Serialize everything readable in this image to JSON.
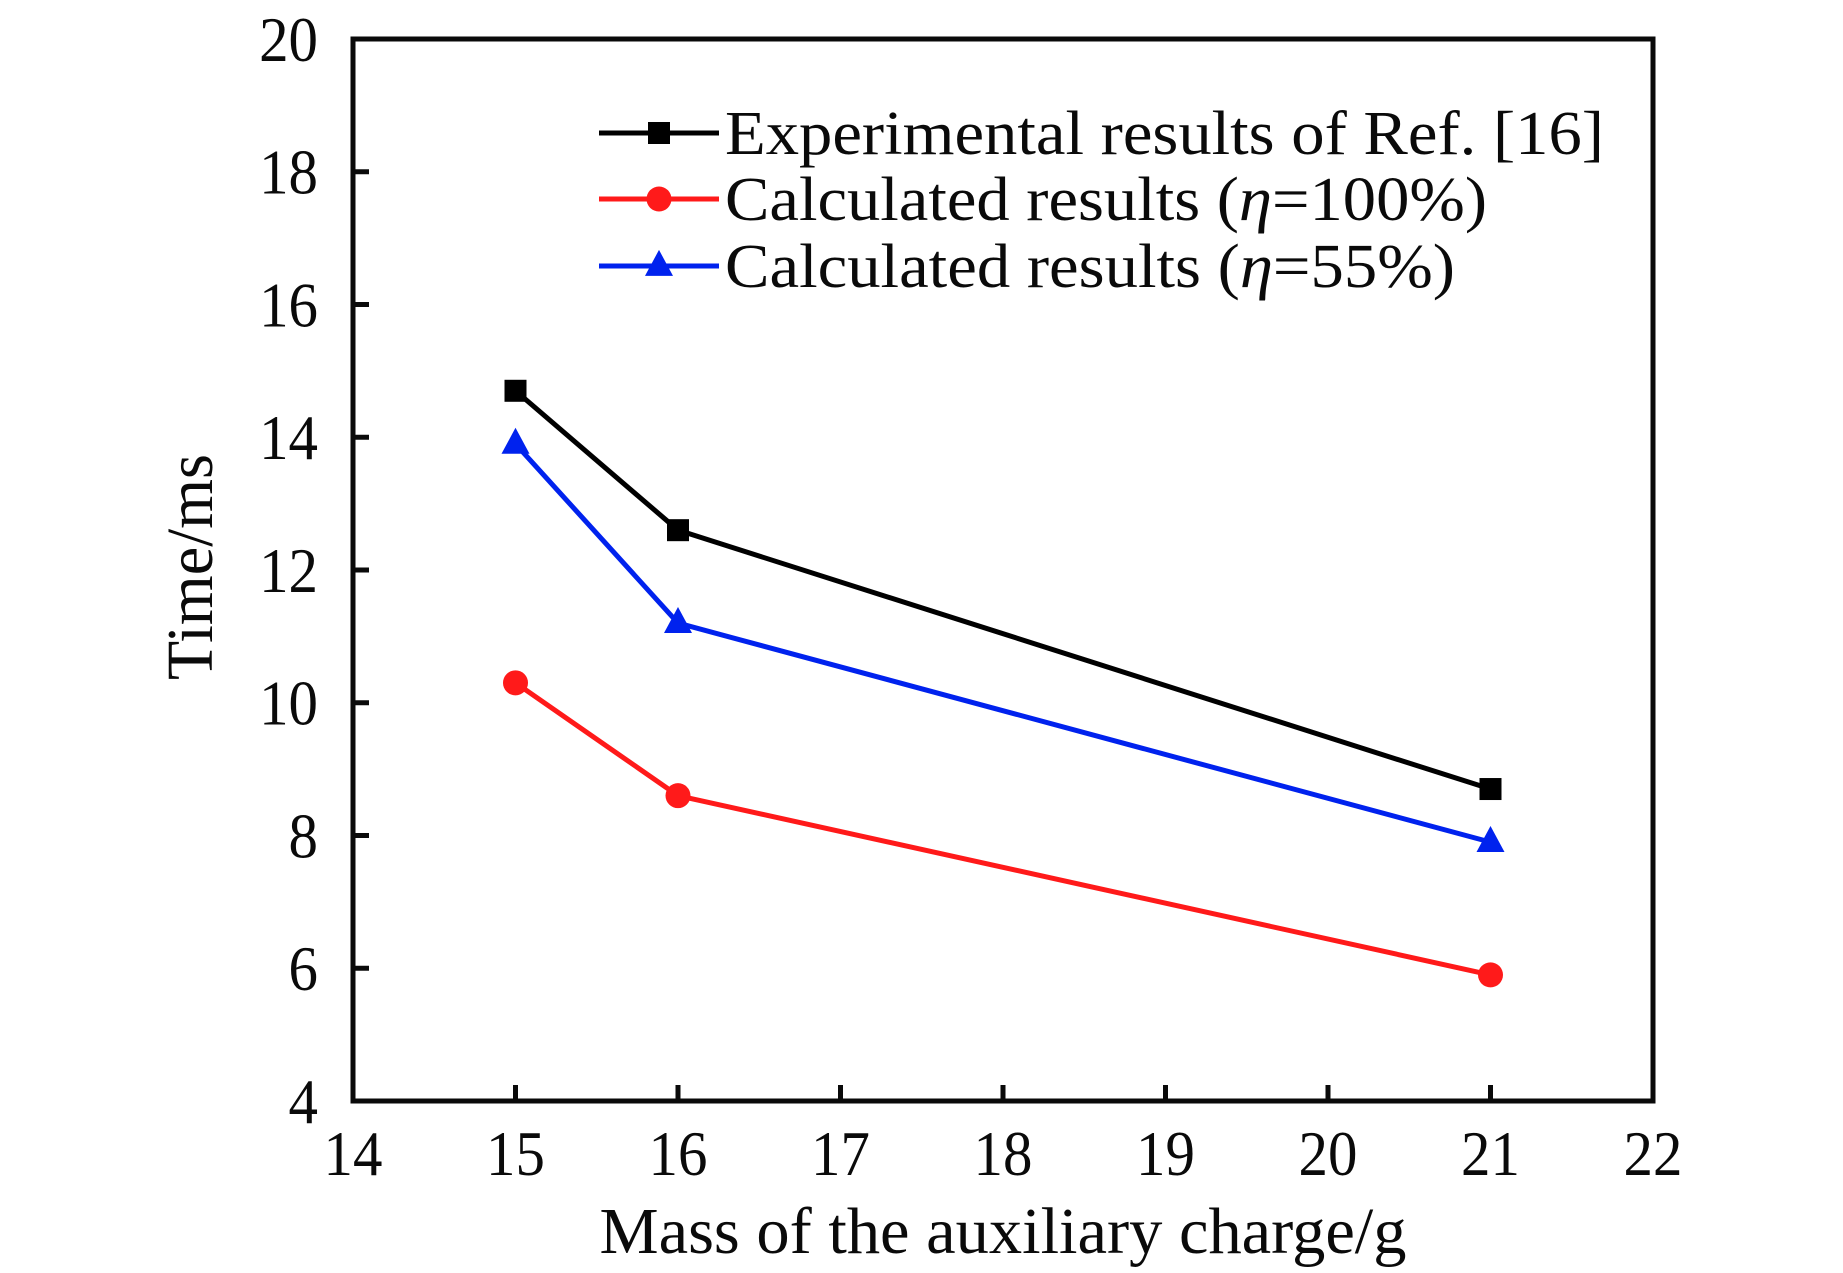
{
  "chart_data": {
    "type": "line",
    "title": "",
    "xlabel": "Mass of the auxiliary charge/g",
    "ylabel": "Time/ms",
    "xlim": [
      14,
      22
    ],
    "ylim": [
      4,
      20
    ],
    "xticks": [
      14,
      15,
      16,
      17,
      18,
      19,
      20,
      21,
      22
    ],
    "yticks": [
      4,
      6,
      8,
      10,
      12,
      14,
      16,
      18,
      20
    ],
    "grid": false,
    "legend_position": "top-right",
    "x": [
      15,
      16,
      21
    ],
    "series": [
      {
        "name": "Experimental results of Ref. [16]",
        "label_parts": [
          {
            "text": "Experimental results of Ref. [16]",
            "italic": false
          }
        ],
        "color": "#000000",
        "marker": "square",
        "values": [
          14.7,
          12.6,
          8.7
        ]
      },
      {
        "name": "Calculated results (η=100%)",
        "label_parts": [
          {
            "text": "Calculated results (",
            "italic": false
          },
          {
            "text": "η",
            "italic": true
          },
          {
            "text": "=100%)",
            "italic": false
          }
        ],
        "color": "#ff1a1a",
        "marker": "circle",
        "values": [
          10.3,
          8.6,
          5.9
        ]
      },
      {
        "name": "Calculated results (η=55%)",
        "label_parts": [
          {
            "text": "Calculated results (",
            "italic": false
          },
          {
            "text": "η",
            "italic": true
          },
          {
            "text": "=55%)",
            "italic": false
          }
        ],
        "color": "#0022ee",
        "marker": "triangle",
        "values": [
          13.9,
          11.2,
          7.9
        ]
      }
    ]
  }
}
